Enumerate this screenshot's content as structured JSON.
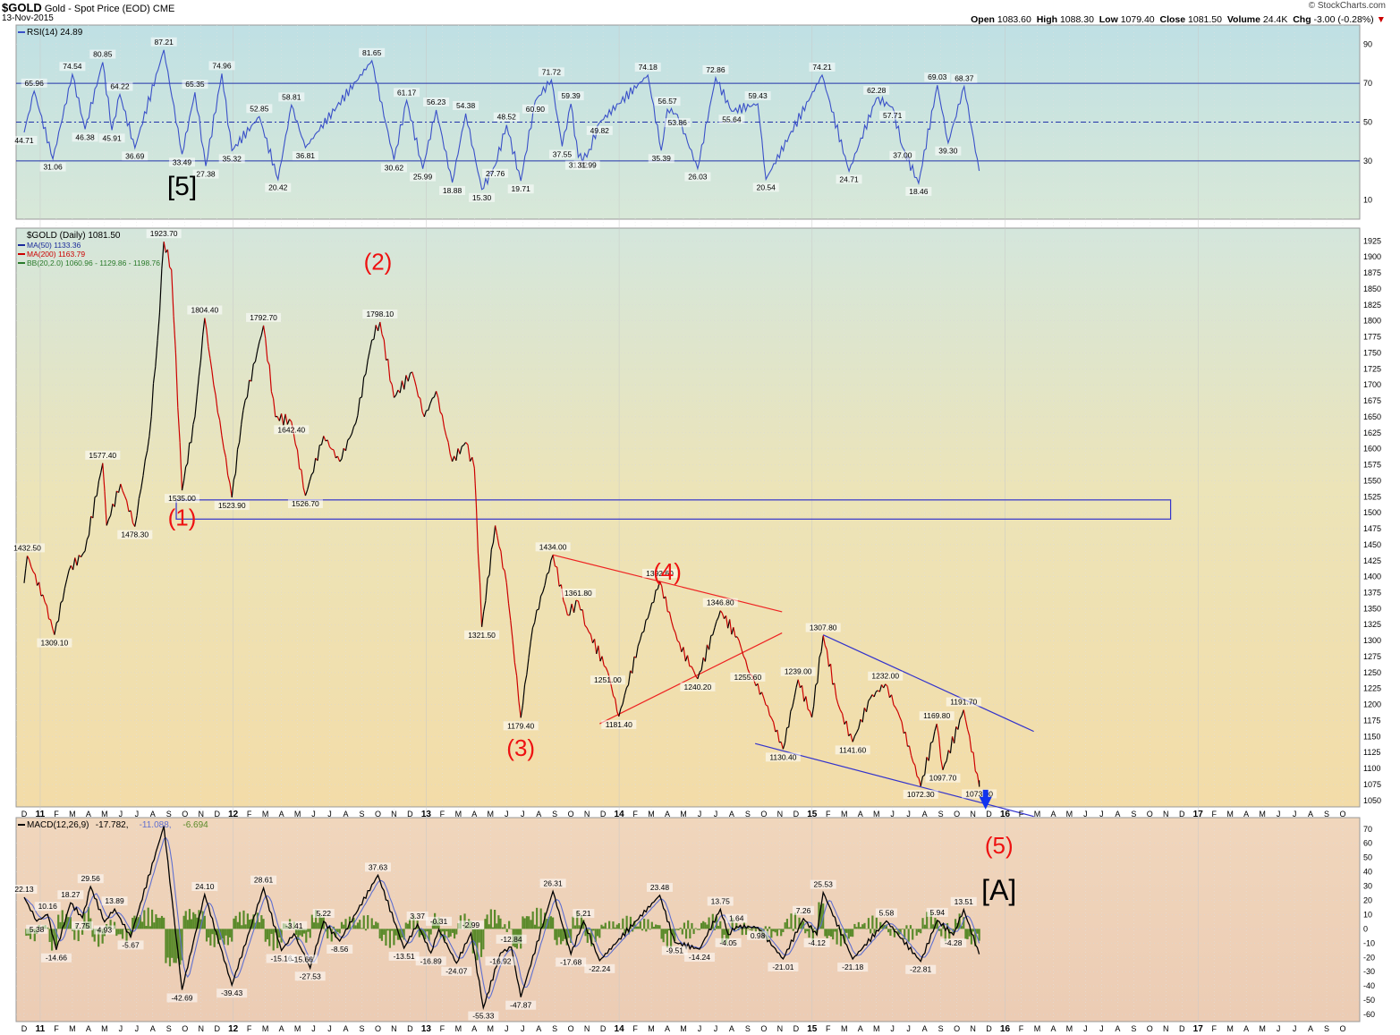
{
  "header": {
    "symbol": "$GOLD",
    "name": "Gold - Spot Price (EOD)",
    "exchange": "CME",
    "date": "13-Nov-2015",
    "brand": "© StockCharts.com",
    "open_label": "Open",
    "open": "1083.60",
    "high_label": "High",
    "high": "1088.30",
    "low_label": "Low",
    "low": "1079.40",
    "close_label": "Close",
    "close": "1081.50",
    "volume_label": "Volume",
    "volume": "24.4K",
    "chg_label": "Chg",
    "chg": "-3.00 (-0.28%)"
  },
  "colors": {
    "price_up": "#000000",
    "price_down": "#cc0000",
    "rsi_line": "#3a50c8",
    "macd_line": "#000000",
    "signal_line": "#6070d0",
    "histogram": "#5a8a2a",
    "wave_label": "#ee1111",
    "channel_red": "#ee2222",
    "channel_blue": "#3333cc"
  },
  "x_axis": {
    "labels": [
      "D",
      "11",
      "F",
      "M",
      "A",
      "M",
      "J",
      "J",
      "A",
      "S",
      "O",
      "N",
      "D",
      "12",
      "F",
      "M",
      "A",
      "M",
      "J",
      "J",
      "A",
      "S",
      "O",
      "N",
      "D",
      "13",
      "F",
      "M",
      "A",
      "M",
      "J",
      "J",
      "A",
      "S",
      "O",
      "N",
      "D",
      "14",
      "F",
      "M",
      "A",
      "M",
      "J",
      "J",
      "A",
      "S",
      "O",
      "N",
      "D",
      "15",
      "F",
      "M",
      "A",
      "M",
      "J",
      "J",
      "A",
      "S",
      "O",
      "N",
      "D",
      "16",
      "F",
      "M",
      "A",
      "M",
      "J",
      "J",
      "A",
      "S",
      "O",
      "N",
      "D",
      "17",
      "F",
      "M",
      "A",
      "M",
      "J",
      "J",
      "A",
      "S",
      "O"
    ],
    "year_labels": [
      "11",
      "12",
      "13",
      "14",
      "15",
      "16",
      "17"
    ],
    "start": "2010-12",
    "end": "2017-10"
  },
  "chart_data": [
    {
      "panel": "rsi",
      "type": "line",
      "label": "RSI(14) 24.89",
      "ylim": [
        0,
        100
      ],
      "ticks": [
        10,
        30,
        50,
        70,
        90
      ],
      "reference_lines": [
        30,
        50,
        70
      ],
      "points": [
        [
          "2010-12-01",
          44.71
        ],
        [
          "2010-12-20",
          65.96
        ],
        [
          "2011-01-25",
          31.06
        ],
        [
          "2011-03-01",
          74.54
        ],
        [
          "2011-03-25",
          46.38
        ],
        [
          "2011-04-28",
          80.85
        ],
        [
          "2011-05-15",
          45.91
        ],
        [
          "2011-05-30",
          64.22
        ],
        [
          "2011-06-28",
          36.69
        ],
        [
          "2011-08-22",
          87.21
        ],
        [
          "2011-09-26",
          33.49
        ],
        [
          "2011-10-20",
          65.35
        ],
        [
          "2011-11-10",
          27.38
        ],
        [
          "2011-12-10",
          74.96
        ],
        [
          "2011-12-29",
          35.32
        ],
        [
          "2012-02-20",
          52.85
        ],
        [
          "2012-03-25",
          20.42
        ],
        [
          "2012-04-20",
          58.81
        ],
        [
          "2012-05-16",
          36.81
        ],
        [
          "2012-09-20",
          81.65
        ],
        [
          "2012-11-01",
          30.62
        ],
        [
          "2012-11-25",
          61.17
        ],
        [
          "2012-12-25",
          25.99
        ],
        [
          "2013-01-20",
          56.23
        ],
        [
          "2013-02-20",
          18.88
        ],
        [
          "2013-03-15",
          54.38
        ],
        [
          "2013-04-15",
          15.3
        ],
        [
          "2013-05-10",
          27.76
        ],
        [
          "2013-06-01",
          48.52
        ],
        [
          "2013-06-28",
          19.71
        ],
        [
          "2013-07-25",
          60.9
        ],
        [
          "2013-08-25",
          71.72
        ],
        [
          "2013-09-15",
          37.55
        ],
        [
          "2013-10-01",
          59.39
        ],
        [
          "2013-10-15",
          31.92
        ],
        [
          "2013-11-01",
          31.99
        ],
        [
          "2013-11-25",
          49.82
        ],
        [
          "2014-02-25",
          74.18
        ],
        [
          "2014-03-20",
          35.39
        ],
        [
          "2014-04-01",
          56.57
        ],
        [
          "2014-04-20",
          53.86
        ],
        [
          "2014-05-28",
          26.03
        ],
        [
          "2014-07-01",
          72.86
        ],
        [
          "2014-08-01",
          55.64
        ],
        [
          "2014-09-20",
          59.43
        ],
        [
          "2014-10-05",
          20.54
        ],
        [
          "2015-01-20",
          74.21
        ],
        [
          "2015-03-10",
          24.71
        ],
        [
          "2015-05-01",
          62.28
        ],
        [
          "2015-06-01",
          57.71
        ],
        [
          "2015-06-20",
          37.0
        ],
        [
          "2015-07-20",
          18.46
        ],
        [
          "2015-08-25",
          69.03
        ],
        [
          "2015-09-15",
          39.3
        ],
        [
          "2015-10-15",
          68.37
        ],
        [
          "2015-11-13",
          24.89
        ]
      ],
      "labels": [
        "44.71",
        "65.96",
        "31.06",
        "74.54",
        "46.38",
        "80.85",
        "45.91",
        "64.22",
        "36.69",
        "87.21",
        "33.49",
        "65.35",
        "27.38",
        "74.96",
        "35.32",
        "52.85",
        "20.42",
        "58.81",
        "36.81",
        "81.65",
        "30.62",
        "61.17",
        "25.99",
        "56.23",
        "18.88",
        "54.38",
        "15.30",
        "27.76",
        "48.52",
        "19.71",
        "60.90",
        "71.72",
        "37.55",
        "59.39",
        "31.92",
        "31.99",
        "49.82",
        "74.18",
        "35.39",
        "56.57",
        "53.86",
        "26.03",
        "72.86",
        "55.64",
        "59.43",
        "20.54",
        "74.21",
        "24.71",
        "62.28",
        "57.71",
        "37.00",
        "18.46",
        "69.03",
        "39.30",
        "68.37"
      ]
    },
    {
      "panel": "price",
      "type": "line",
      "label": "$GOLD (Daily) 1081.50",
      "legend": [
        "MA(50) 1133.36",
        "MA(200) 1163.79",
        "BB(20,2.0) 1060.96 - 1129.86 - 1198.76"
      ],
      "ylim": [
        1040,
        1945
      ],
      "ticks": [
        1050,
        1075,
        1100,
        1125,
        1150,
        1175,
        1200,
        1225,
        1250,
        1275,
        1300,
        1325,
        1350,
        1375,
        1400,
        1425,
        1450,
        1475,
        1500,
        1525,
        1550,
        1575,
        1600,
        1625,
        1650,
        1675,
        1700,
        1725,
        1750,
        1775,
        1800,
        1825,
        1850,
        1875,
        1900,
        1925
      ],
      "points": [
        [
          "2010-12-01",
          1390
        ],
        [
          "2010-12-07",
          1432.5
        ],
        [
          "2011-01-10",
          1360
        ],
        [
          "2011-01-28",
          1309.1
        ],
        [
          "2011-02-25",
          1410
        ],
        [
          "2011-03-25",
          1440
        ],
        [
          "2011-04-28",
          1577.4
        ],
        [
          "2011-05-05",
          1480
        ],
        [
          "2011-06-01",
          1545
        ],
        [
          "2011-06-28",
          1478.3
        ],
        [
          "2011-07-25",
          1620
        ],
        [
          "2011-08-10",
          1770
        ],
        [
          "2011-08-22",
          1923.7
        ],
        [
          "2011-09-06",
          1880
        ],
        [
          "2011-09-26",
          1535.0
        ],
        [
          "2011-10-20",
          1650
        ],
        [
          "2011-11-08",
          1804.4
        ],
        [
          "2011-11-25",
          1700
        ],
        [
          "2011-12-29",
          1523.9
        ],
        [
          "2012-01-20",
          1660
        ],
        [
          "2012-02-28",
          1792.7
        ],
        [
          "2012-03-20",
          1650
        ],
        [
          "2012-04-20",
          1642.4
        ],
        [
          "2012-05-16",
          1526.7
        ],
        [
          "2012-06-20",
          1620
        ],
        [
          "2012-07-20",
          1580
        ],
        [
          "2012-08-20",
          1640
        ],
        [
          "2012-09-20",
          1770
        ],
        [
          "2012-10-05",
          1798.1
        ],
        [
          "2012-11-01",
          1680
        ],
        [
          "2012-12-05",
          1720
        ],
        [
          "2012-12-28",
          1650
        ],
        [
          "2013-01-20",
          1690
        ],
        [
          "2013-02-20",
          1580
        ],
        [
          "2013-03-15",
          1610
        ],
        [
          "2013-04-01",
          1570
        ],
        [
          "2013-04-15",
          1321.5
        ],
        [
          "2013-05-10",
          1480
        ],
        [
          "2013-06-01",
          1390
        ],
        [
          "2013-06-28",
          1179.4
        ],
        [
          "2013-07-20",
          1320
        ],
        [
          "2013-08-28",
          1434.0
        ],
        [
          "2013-09-25",
          1340
        ],
        [
          "2013-10-15",
          1361.8
        ],
        [
          "2013-11-01",
          1320
        ],
        [
          "2013-12-10",
          1251.0
        ],
        [
          "2013-12-31",
          1181.4
        ],
        [
          "2014-02-10",
          1300
        ],
        [
          "2014-03-17",
          1392.6
        ],
        [
          "2014-04-20",
          1300
        ],
        [
          "2014-05-28",
          1240.2
        ],
        [
          "2014-07-10",
          1346.8
        ],
        [
          "2014-08-15",
          1300
        ],
        [
          "2014-09-01",
          1255.6
        ],
        [
          "2014-10-01",
          1210
        ],
        [
          "2014-11-07",
          1130.4
        ],
        [
          "2014-12-05",
          1239.0
        ],
        [
          "2014-12-31",
          1180
        ],
        [
          "2015-01-22",
          1307.8
        ],
        [
          "2015-02-20",
          1200
        ],
        [
          "2015-03-17",
          1141.6
        ],
        [
          "2015-04-20",
          1210
        ],
        [
          "2015-05-18",
          1232.0
        ],
        [
          "2015-06-15",
          1180
        ],
        [
          "2015-07-24",
          1072.3
        ],
        [
          "2015-08-24",
          1169.8
        ],
        [
          "2015-09-05",
          1097.7
        ],
        [
          "2015-10-14",
          1191.7
        ],
        [
          "2015-11-13",
          1073.0
        ],
        [
          "2015-11-13",
          1081.5
        ]
      ],
      "labels": [
        "1432.50",
        "1309.10",
        "1577.40",
        "1478.30",
        "1923.70",
        "1535.00",
        "1804.40",
        "1523.90",
        "1792.70",
        "1642.40",
        "1526.70",
        "1798.10",
        "1321.50",
        "1179.40",
        "1434.00",
        "1361.80",
        "1251.00",
        "1181.40",
        "1392.60",
        "1240.20",
        "1346.80",
        "1255.60",
        "1130.40",
        "1239.00",
        "1307.80",
        "1141.60",
        "1232.00",
        "1072.30",
        "1169.80",
        "1097.70",
        "1191.70",
        "1073.00"
      ],
      "support_box": {
        "from": "2011-09-15",
        "to": "2016-11-10",
        "low": 1490,
        "high": 1520
      },
      "trendlines": [
        {
          "color": "red",
          "from": [
            "2013-08-28",
            1434
          ],
          "to": [
            "2014-11-05",
            1345
          ]
        },
        {
          "color": "red",
          "from": [
            "2013-11-25",
            1170
          ],
          "to": [
            "2014-11-05",
            1312
          ]
        },
        {
          "color": "blue",
          "from": [
            "2015-01-22",
            1309
          ],
          "to": [
            "2016-02-25",
            1158
          ]
        },
        {
          "color": "blue",
          "from": [
            "2014-09-15",
            1139
          ],
          "to": [
            "2016-02-25",
            1025
          ]
        }
      ],
      "wave_labels": [
        {
          "text": "(1)",
          "date": "2011-09-26",
          "price": 1480
        },
        {
          "text": "(2)",
          "date": "2012-10-01",
          "price": 1880
        },
        {
          "text": "(3)",
          "date": "2013-06-28",
          "price": 1120
        },
        {
          "text": "(4)",
          "date": "2014-04-01",
          "price": 1395
        },
        {
          "text": "(5)",
          "date": "2015-12-20",
          "price": null,
          "panel_y": "below"
        },
        {
          "text": "[5]",
          "date": "2011-09-26",
          "panel": "rsi"
        },
        {
          "text": "[A]",
          "date": "2015-12-20",
          "panel": "macd"
        }
      ],
      "target_arrow": {
        "date": "2015-11-25",
        "price": 1050
      }
    },
    {
      "panel": "macd",
      "type": "line",
      "label": "MACD(12,26,9) -17.782, -11.088, -6.694",
      "macd_label_parts": [
        "MACD(12,26,9)",
        "-17.782,",
        "-11.088,",
        "-6.694"
      ],
      "ylim": [
        -65,
        78
      ],
      "ticks": [
        -60,
        -50,
        -40,
        -30,
        -20,
        -10,
        0,
        10,
        20,
        30,
        40,
        50,
        60,
        70
      ],
      "points": [
        [
          "2010-12-01",
          22.13
        ],
        [
          "2010-12-25",
          5.38
        ],
        [
          "2011-01-15",
          10.16
        ],
        [
          "2011-02-01",
          -14.66
        ],
        [
          "2011-02-28",
          18.27
        ],
        [
          "2011-03-20",
          7.75
        ],
        [
          "2011-04-05",
          29.56
        ],
        [
          "2011-05-01",
          4.93
        ],
        [
          "2011-05-20",
          13.89
        ],
        [
          "2011-06-20",
          -5.67
        ],
        [
          "2011-08-22",
          72
        ],
        [
          "2011-09-26",
          -42.69
        ],
        [
          "2011-11-08",
          24.1
        ],
        [
          "2011-12-29",
          -39.43
        ],
        [
          "2012-02-28",
          28.61
        ],
        [
          "2012-04-01",
          -15.16
        ],
        [
          "2012-04-25",
          -3.41
        ],
        [
          "2012-05-10",
          -15.66
        ],
        [
          "2012-05-25",
          -27.53
        ],
        [
          "2012-06-20",
          5.22
        ],
        [
          "2012-07-20",
          -8.56
        ],
        [
          "2012-10-01",
          37.63
        ],
        [
          "2012-11-20",
          -13.51
        ],
        [
          "2012-12-15",
          3.37
        ],
        [
          "2013-01-10",
          -16.89
        ],
        [
          "2013-01-25",
          -0.31
        ],
        [
          "2013-02-28",
          -24.07
        ],
        [
          "2013-03-25",
          -2.99
        ],
        [
          "2013-04-18",
          -55.33
        ],
        [
          "2013-05-20",
          -16.92
        ],
        [
          "2013-06-10",
          -12.84
        ],
        [
          "2013-06-28",
          -47.87
        ],
        [
          "2013-08-28",
          26.31
        ],
        [
          "2013-10-01",
          -17.68
        ],
        [
          "2013-10-25",
          5.21
        ],
        [
          "2013-11-25",
          -22.24
        ],
        [
          "2014-03-17",
          23.48
        ],
        [
          "2014-04-15",
          -9.51
        ],
        [
          "2014-06-01",
          -14.24
        ],
        [
          "2014-07-10",
          13.75
        ],
        [
          "2014-07-25",
          -4.05
        ],
        [
          "2014-08-10",
          1.64
        ],
        [
          "2014-09-20",
          0.98
        ],
        [
          "2014-11-07",
          -21.01
        ],
        [
          "2014-12-15",
          7.26
        ],
        [
          "2015-01-10",
          -4.12
        ],
        [
          "2015-01-22",
          25.53
        ],
        [
          "2015-03-17",
          -21.18
        ],
        [
          "2015-05-20",
          5.58
        ],
        [
          "2015-07-24",
          -22.81
        ],
        [
          "2015-08-25",
          5.94
        ],
        [
          "2015-09-25",
          -4.28
        ],
        [
          "2015-10-14",
          13.51
        ],
        [
          "2015-11-13",
          -17.78
        ]
      ],
      "labels": [
        "22.13",
        "5.38",
        "10.16",
        "-14.66",
        "18.27",
        "7.75",
        "29.56",
        "4.93",
        "13.89",
        "-5.67",
        "-42.69",
        "24.10",
        "-39.43",
        "28.61",
        "-15.16",
        "-3.41",
        "-15.66",
        "-27.53",
        "5.22",
        "-8.56",
        "37.63",
        "-13.51",
        "3.37",
        "-16.89",
        "-0.31",
        "-24.07",
        "-2.99",
        "-55.33",
        "-16.92",
        "-12.84",
        "-47.87",
        "26.31",
        "-17.68",
        "5.21",
        "-22.24",
        "23.48",
        "-9.51",
        "-14.24",
        "13.75",
        "-4.05",
        "1.64",
        "0.98",
        "-21.01",
        "7.26",
        "-4.12",
        "25.53",
        "-21.18",
        "5.58",
        "-22.81",
        "5.94",
        "-4.28",
        "13.51"
      ]
    }
  ]
}
